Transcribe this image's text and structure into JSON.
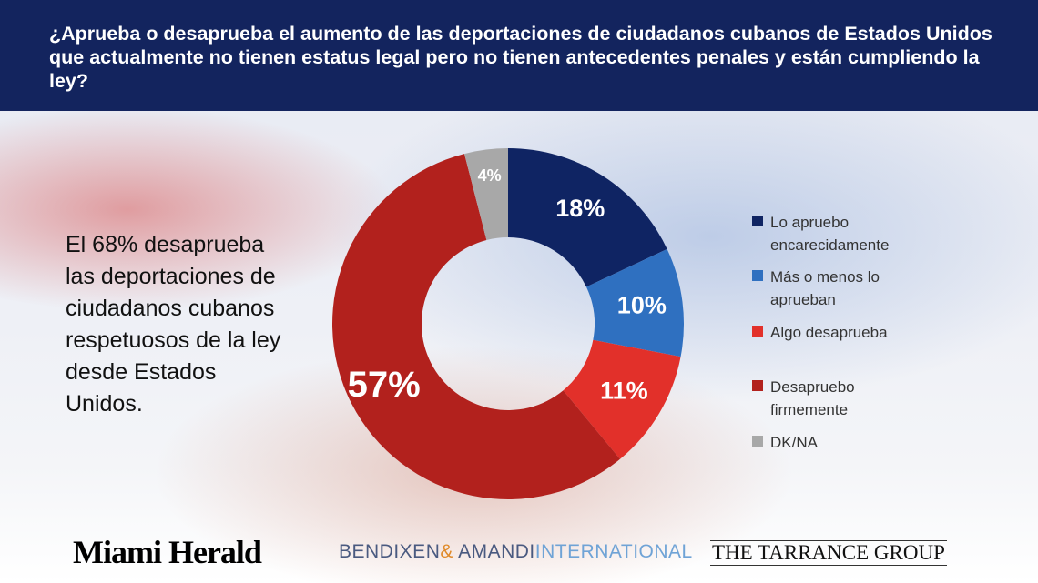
{
  "chart_data": {
    "type": "donut",
    "title": "¿Aprueba o desaprueba el aumento de las deportaciones de ciudadanos cubanos de Estados Unidos que actualmente no tienen estatus legal pero no tienen antecedentes penales y están cumpliendo la ley?",
    "annotation": "El 68% desaprueba las deportaciones de ciudadanos cubanos respetuosos de la ley desde Estados Unidos.",
    "categories": [
      "Lo apruebo encarecidamente",
      "Más o menos lo aprueban",
      "Algo desaprueba",
      "Desapruebo firmemente",
      "DK/NA"
    ],
    "values": [
      18,
      10,
      11,
      57,
      4
    ],
    "value_labels": [
      "18%",
      "10%",
      "11%",
      "57%",
      "4%"
    ],
    "colors": [
      "#0f2463",
      "#2f70c0",
      "#e2302a",
      "#b2211d",
      "#a8a8a8"
    ],
    "legend": "right",
    "logos": [
      "Miami Herald",
      "BENDIXEN",
      "&",
      "AMANDI",
      "INTERNATIONAL",
      "THE TARRANCE GROUP"
    ]
  }
}
